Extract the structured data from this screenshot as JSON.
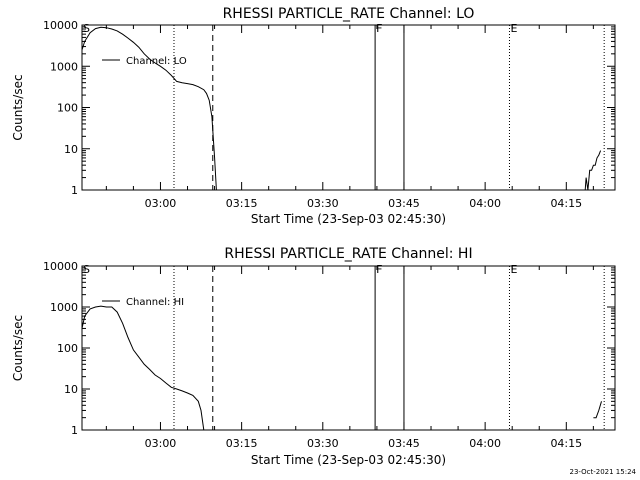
{
  "footer": {
    "timestamp": "23-Oct-2021 15:24"
  },
  "chart_data": [
    {
      "type": "line",
      "title": "RHESSI PARTICLE_RATE Channel: LO",
      "xlabel": "Start Time (23-Sep-03 02:45:30)",
      "ylabel": "Counts/sec",
      "yscale": "log",
      "ylim": [
        1,
        10000
      ],
      "xlim": [
        "02:45:30",
        "04:24:00"
      ],
      "y_ticks": [
        "1",
        "10",
        "100",
        "1000",
        "10000"
      ],
      "x_ticks": [
        "03:00",
        "03:15",
        "03:30",
        "03:45",
        "04:00",
        "04:15"
      ],
      "legend": {
        "label": "Channel: LO",
        "placement": "top-left"
      },
      "markers": [
        {
          "label": "S",
          "time": "02:45:30",
          "style": "none"
        },
        {
          "label": "",
          "time": "03:02:30",
          "style": "dotted"
        },
        {
          "label": "",
          "time": "03:09:40",
          "style": "dashed"
        },
        {
          "label": "F",
          "time": "03:39:40",
          "style": "solid"
        },
        {
          "label": "",
          "time": "03:45:00",
          "style": "solid"
        },
        {
          "label": "E",
          "time": "04:04:30",
          "style": "dotted"
        },
        {
          "label": "",
          "time": "04:22:00",
          "style": "dotted"
        }
      ],
      "series": [
        {
          "segments": [
            {
              "x": [
                "02:45:30",
                "02:46:00",
                "02:47:00",
                "02:48:00",
                "02:49:00",
                "02:50:00",
                "02:51:00",
                "02:52:00",
                "02:53:00",
                "02:54:00",
                "02:55:00",
                "02:56:00",
                "02:57:00",
                "02:58:00",
                "02:59:00",
                "03:00:00",
                "03:01:00",
                "03:02:00",
                "03:03:00",
                "03:04:00",
                "03:05:00",
                "03:06:00",
                "03:07:00",
                "03:08:00",
                "03:08:30",
                "03:09:00",
                "03:09:30",
                "03:10:00",
                "03:10:20"
              ],
              "y": [
                2500,
                4000,
                6500,
                8200,
                8800,
                8600,
                8000,
                7200,
                6000,
                4800,
                3800,
                2900,
                2000,
                1500,
                1200,
                1000,
                800,
                600,
                430,
                400,
                380,
                360,
                320,
                270,
                220,
                150,
                60,
                6,
                1
              ]
            },
            {
              "x": [
                "04:18:30",
                "04:18:40",
                "04:19:00",
                "04:19:20",
                "04:19:40",
                "04:20:00",
                "04:20:20",
                "04:20:40",
                "04:21:00",
                "04:21:20"
              ],
              "y": [
                1,
                2,
                1,
                3,
                3,
                4,
                4,
                6,
                7,
                9
              ]
            }
          ]
        }
      ]
    },
    {
      "type": "line",
      "title": "RHESSI PARTICLE_RATE Channel: HI",
      "xlabel": "Start Time (23-Sep-03 02:45:30)",
      "ylabel": "Counts/sec",
      "yscale": "log",
      "ylim": [
        1,
        10000
      ],
      "xlim": [
        "02:45:30",
        "04:24:00"
      ],
      "y_ticks": [
        "1",
        "10",
        "100",
        "1000",
        "10000"
      ],
      "x_ticks": [
        "03:00",
        "03:15",
        "03:30",
        "03:45",
        "04:00",
        "04:15"
      ],
      "legend": {
        "label": "Channel: HI",
        "placement": "top-left"
      },
      "markers": [
        {
          "label": "S",
          "time": "02:45:30",
          "style": "none"
        },
        {
          "label": "",
          "time": "03:02:30",
          "style": "dotted"
        },
        {
          "label": "",
          "time": "03:09:40",
          "style": "dashed"
        },
        {
          "label": "F",
          "time": "03:39:40",
          "style": "solid"
        },
        {
          "label": "",
          "time": "03:45:00",
          "style": "solid"
        },
        {
          "label": "E",
          "time": "04:04:30",
          "style": "dotted"
        },
        {
          "label": "",
          "time": "04:22:00",
          "style": "dotted"
        }
      ],
      "series": [
        {
          "segments": [
            {
              "x": [
                "02:45:30",
                "02:46:00",
                "02:47:00",
                "02:48:00",
                "02:49:00",
                "02:50:00",
                "02:51:00",
                "02:52:00",
                "02:53:00",
                "02:54:00",
                "02:55:00",
                "02:56:00",
                "02:57:00",
                "02:58:00",
                "02:59:00",
                "03:00:00",
                "03:01:00",
                "03:02:00",
                "03:03:00",
                "03:04:00",
                "03:05:00",
                "03:06:00",
                "03:07:00",
                "03:07:30",
                "03:08:00"
              ],
              "y": [
                300,
                600,
                900,
                1000,
                1050,
                1000,
                1000,
                750,
                400,
                180,
                90,
                60,
                40,
                30,
                22,
                18,
                14,
                11,
                10,
                9,
                8,
                7,
                5,
                3,
                1
              ]
            },
            {
              "x": [
                "04:20:00",
                "04:20:30",
                "04:21:00",
                "04:21:30"
              ],
              "y": [
                2,
                2,
                3,
                5
              ]
            }
          ]
        }
      ]
    }
  ]
}
